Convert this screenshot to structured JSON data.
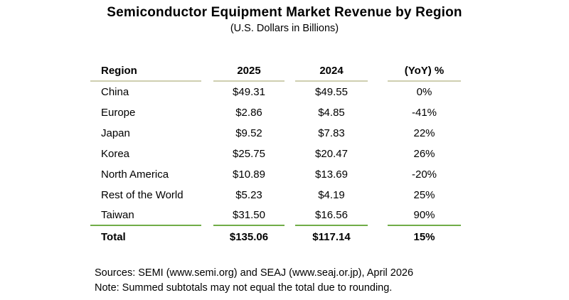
{
  "header": {
    "title": "Semiconductor Equipment Market Revenue by Region",
    "subtitle": "(U.S. Dollars in Billions)"
  },
  "table": {
    "columns": [
      {
        "label": "Region"
      },
      {
        "label": "2025"
      },
      {
        "label": "2024"
      },
      {
        "label": "(YoY) %"
      }
    ],
    "rows": [
      {
        "region": "China",
        "y2025": "$49.31",
        "y2024": "$49.55",
        "yoy": "0%"
      },
      {
        "region": "Europe",
        "y2025": "$2.86",
        "y2024": "$4.85",
        "yoy": "-41%"
      },
      {
        "region": "Japan",
        "y2025": "$9.52",
        "y2024": "$7.83",
        "yoy": "22%"
      },
      {
        "region": "Korea",
        "y2025": "$25.75",
        "y2024": "$20.47",
        "yoy": "26%"
      },
      {
        "region": "North America",
        "y2025": "$10.89",
        "y2024": "$13.69",
        "yoy": "-20%"
      },
      {
        "region": "Rest of the World",
        "y2025": "$5.23",
        "y2024": "$4.19",
        "yoy": "25%"
      },
      {
        "region": "Taiwan",
        "y2025": "$31.50",
        "y2024": "$16.56",
        "yoy": "90%"
      }
    ],
    "total": {
      "region": "Total",
      "y2025": "$135.06",
      "y2024": "$117.14",
      "yoy": "15%"
    }
  },
  "footer": {
    "sources": "Sources: SEMI (www.semi.org) and SEAJ (www.seaj.or.jp), April 2026",
    "note": "Note: Summed subtotals may not equal the total due to rounding."
  },
  "colors": {
    "header_rule": "#cfcfb0",
    "total_rule": "#70ad47"
  },
  "chart_data": {
    "type": "table",
    "title": "Semiconductor Equipment Market Revenue by Region",
    "subtitle": "(U.S. Dollars in Billions)",
    "columns": [
      "Region",
      "2025",
      "2024",
      "(YoY) %"
    ],
    "categories": [
      "China",
      "Europe",
      "Japan",
      "Korea",
      "North America",
      "Rest of the World",
      "Taiwan"
    ],
    "series": [
      {
        "name": "2025",
        "values": [
          49.31,
          2.86,
          9.52,
          25.75,
          10.89,
          5.23,
          31.5
        ]
      },
      {
        "name": "2024",
        "values": [
          49.55,
          4.85,
          7.83,
          20.47,
          13.69,
          4.19,
          16.56
        ]
      },
      {
        "name": "(YoY) %",
        "values": [
          0,
          -41,
          22,
          26,
          -20,
          25,
          90
        ]
      }
    ],
    "total": {
      "2025": 135.06,
      "2024": 117.14,
      "(YoY) %": 15
    },
    "annotations": [
      "Sources: SEMI (www.semi.org) and SEAJ (www.seaj.or.jp), April 2026",
      "Note: Summed subtotals may not equal the total due to rounding."
    ]
  }
}
